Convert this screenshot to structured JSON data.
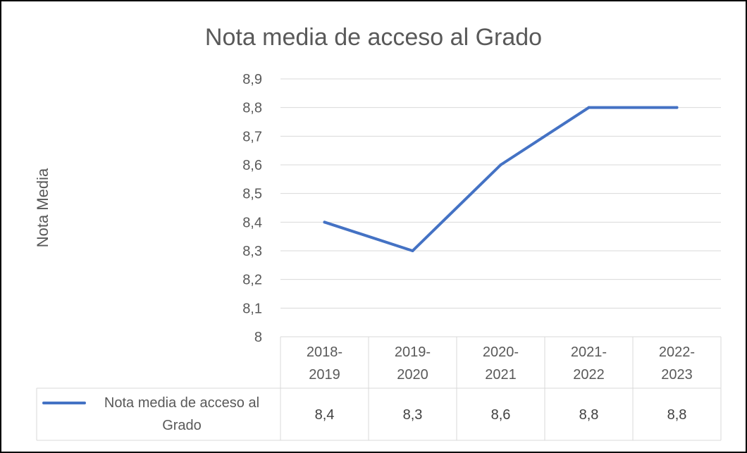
{
  "chart_data": {
    "type": "line",
    "title": "Nota media  de acceso al Grado",
    "ylabel": "Nota Media",
    "xlabel": "",
    "categories": [
      [
        "2018-",
        "2019"
      ],
      [
        "2019-",
        "2020"
      ],
      [
        "2020-",
        "2021"
      ],
      [
        "2021-",
        "2022"
      ],
      [
        "2022-",
        "2023"
      ]
    ],
    "series": [
      {
        "name": "Nota media  de acceso al Grado",
        "legend_lines": [
          "Nota media  de acceso al",
          "Grado"
        ],
        "values": [
          8.4,
          8.3,
          8.6,
          8.8,
          8.8
        ],
        "color": "#4472C4"
      }
    ],
    "ylim": [
      8.0,
      8.9
    ],
    "yticks": [
      "8,9",
      "8,8",
      "8,7",
      "8,6",
      "8,5",
      "8,4",
      "8,3",
      "8,2",
      "8,1",
      "8"
    ],
    "table_values": [
      "8,4",
      "8,3",
      "8,6",
      "8,8",
      "8,8"
    ],
    "grid": true,
    "legend": "data-table"
  }
}
